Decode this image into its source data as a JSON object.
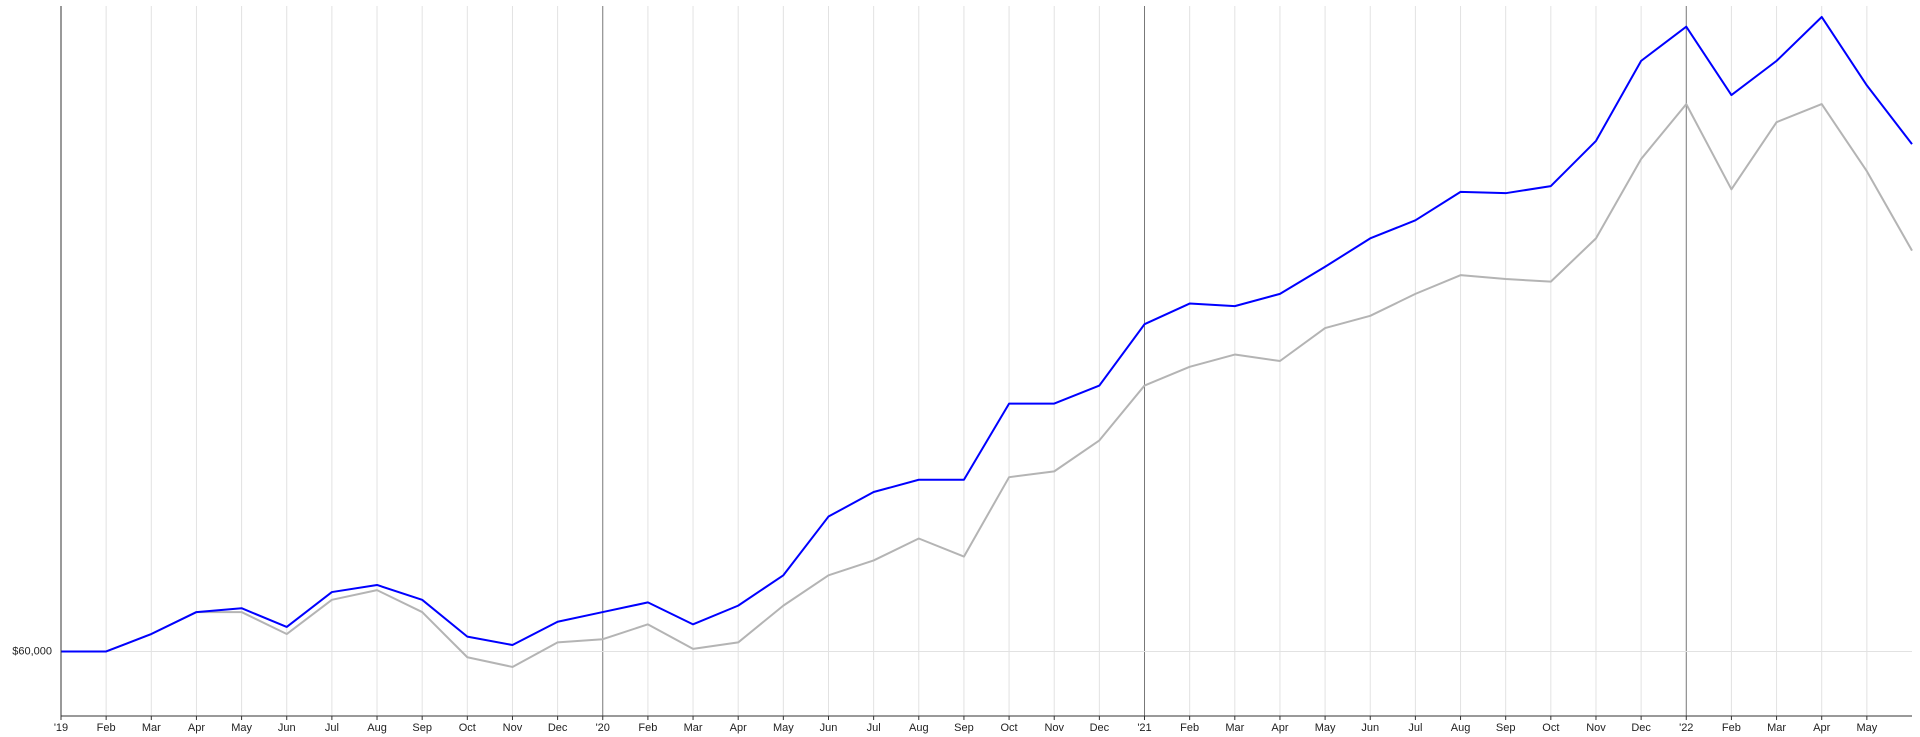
{
  "chart_data": {
    "type": "line",
    "x": [
      "2019-01",
      "2019-02",
      "2019-03",
      "2019-04",
      "2019-05",
      "2019-06",
      "2019-07",
      "2019-08",
      "2019-09",
      "2019-10",
      "2019-11",
      "2019-12",
      "2020-01",
      "2020-02",
      "2020-03",
      "2020-04",
      "2020-05",
      "2020-06",
      "2020-07",
      "2020-08",
      "2020-09",
      "2020-10",
      "2020-11",
      "2020-12",
      "2021-01",
      "2021-02",
      "2021-03",
      "2021-04",
      "2021-05",
      "2021-06",
      "2021-07",
      "2021-08",
      "2021-09",
      "2021-10",
      "2021-11",
      "2021-12",
      "2022-01",
      "2022-02",
      "2022-03",
      "2022-04",
      "2022-05",
      "2022-06"
    ],
    "series": [
      {
        "color": "#0000ff",
        "values": [
          60000,
          60000,
          62700,
          66100,
          66700,
          63800,
          69200,
          70300,
          68000,
          62300,
          61000,
          64600,
          66100,
          67600,
          64200,
          67100,
          71800,
          80900,
          84700,
          86600,
          86600,
          98400,
          98400,
          101200,
          110700,
          113900,
          113500,
          115400,
          119600,
          124000,
          126800,
          131200,
          131000,
          132100,
          139100,
          151500,
          156800,
          146200,
          151500,
          158300,
          147700,
          138600
        ]
      },
      {
        "color": "#b4b4b4",
        "values": [
          60000,
          60000,
          62700,
          66100,
          66100,
          62700,
          68000,
          69500,
          66100,
          59100,
          57600,
          61400,
          61900,
          64200,
          60400,
          61400,
          67100,
          71800,
          74100,
          77500,
          74700,
          87000,
          87900,
          92700,
          101200,
          104100,
          106000,
          105000,
          110100,
          112000,
          115400,
          118300,
          117700,
          117300,
          124000,
          136300,
          144800,
          131600,
          142000,
          144800,
          134400,
          122100
        ]
      }
    ],
    "xlim": [
      "2019-01",
      "2022-06"
    ],
    "xticks": [
      {
        "value": "2019-01",
        "label": "'19"
      },
      {
        "value": "2019-02",
        "label": "Feb"
      },
      {
        "value": "2019-03",
        "label": "Mar"
      },
      {
        "value": "2019-04",
        "label": "Apr"
      },
      {
        "value": "2019-05",
        "label": "May"
      },
      {
        "value": "2019-06",
        "label": "Jun"
      },
      {
        "value": "2019-07",
        "label": "Jul"
      },
      {
        "value": "2019-08",
        "label": "Aug"
      },
      {
        "value": "2019-09",
        "label": "Sep"
      },
      {
        "value": "2019-10",
        "label": "Oct"
      },
      {
        "value": "2019-11",
        "label": "Nov"
      },
      {
        "value": "2019-12",
        "label": "Dec"
      },
      {
        "value": "2020-01",
        "label": "'20"
      },
      {
        "value": "2020-02",
        "label": "Feb"
      },
      {
        "value": "2020-03",
        "label": "Mar"
      },
      {
        "value": "2020-04",
        "label": "Apr"
      },
      {
        "value": "2020-05",
        "label": "May"
      },
      {
        "value": "2020-06",
        "label": "Jun"
      },
      {
        "value": "2020-07",
        "label": "Jul"
      },
      {
        "value": "2020-08",
        "label": "Aug"
      },
      {
        "value": "2020-09",
        "label": "Sep"
      },
      {
        "value": "2020-10",
        "label": "Oct"
      },
      {
        "value": "2020-11",
        "label": "Nov"
      },
      {
        "value": "2020-12",
        "label": "Dec"
      },
      {
        "value": "2021-01",
        "label": "'21"
      },
      {
        "value": "2021-02",
        "label": "Feb"
      },
      {
        "value": "2021-03",
        "label": "Mar"
      },
      {
        "value": "2021-04",
        "label": "Apr"
      },
      {
        "value": "2021-05",
        "label": "May"
      },
      {
        "value": "2021-06",
        "label": "Jun"
      },
      {
        "value": "2021-07",
        "label": "Jul"
      },
      {
        "value": "2021-08",
        "label": "Aug"
      },
      {
        "value": "2021-09",
        "label": "Sep"
      },
      {
        "value": "2021-10",
        "label": "Oct"
      },
      {
        "value": "2021-11",
        "label": "Nov"
      },
      {
        "value": "2021-12",
        "label": "Dec"
      },
      {
        "value": "2022-01",
        "label": "'22"
      },
      {
        "value": "2022-02",
        "label": "Feb"
      },
      {
        "value": "2022-03",
        "label": "Mar"
      },
      {
        "value": "2022-04",
        "label": "Apr"
      },
      {
        "value": "2022-05",
        "label": "May"
      }
    ],
    "ylim": [
      50000,
      160000
    ],
    "yticks": [
      {
        "value": 60000,
        "label": "$60,000"
      }
    ],
    "grid": true
  }
}
